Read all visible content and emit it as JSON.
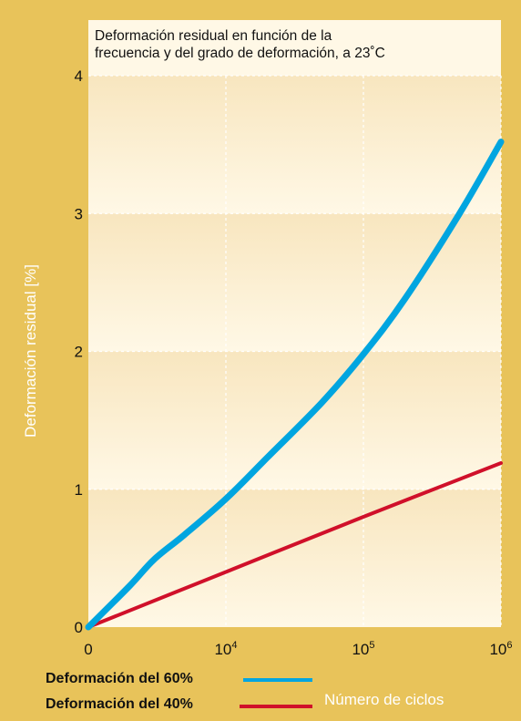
{
  "chart_data": {
    "type": "line",
    "title": "Deformación residual en función de la frecuencia y del grado de deformación, a 23˚C",
    "title_lines": [
      "Deformación residual en función de la",
      "frecuencia y del grado de deformación, a 23˚C"
    ],
    "xlabel": "Número de ciclos",
    "ylabel": "Deformación residual [%]",
    "x_scale": "log",
    "x_ticks": [
      {
        "value": 1000,
        "label": "0",
        "exp": ""
      },
      {
        "value": 10000,
        "label": "10",
        "exp": "4"
      },
      {
        "value": 100000,
        "label": "10",
        "exp": "5"
      },
      {
        "value": 1000000,
        "label": "10",
        "exp": "6"
      }
    ],
    "y_ticks": [
      0,
      1,
      2,
      3,
      4
    ],
    "xlim": [
      1000,
      1000000
    ],
    "ylim": [
      0,
      4
    ],
    "grid": true,
    "legend_position": "bottom-left",
    "series": [
      {
        "name": "Deformación del 60%",
        "color": "#00a5e0",
        "x": [
          1000,
          2000,
          3000,
          5000,
          10000,
          20000,
          50000,
          100000,
          200000,
          500000,
          1000000
        ],
        "y": [
          0.0,
          0.3,
          0.49,
          0.67,
          0.93,
          1.23,
          1.63,
          1.98,
          2.38,
          3.0,
          3.52
        ]
      },
      {
        "name": "Deformación del 40%",
        "color": "#d0102a",
        "x": [
          1000,
          10000,
          100000,
          1000000
        ],
        "y": [
          0.0,
          0.4,
          0.8,
          1.19
        ]
      }
    ],
    "colors": {
      "frame": "#e8c35a",
      "band_light": "#fff8e6",
      "band_dark": "#f8e6bf",
      "gridline": "#ffffff"
    }
  }
}
